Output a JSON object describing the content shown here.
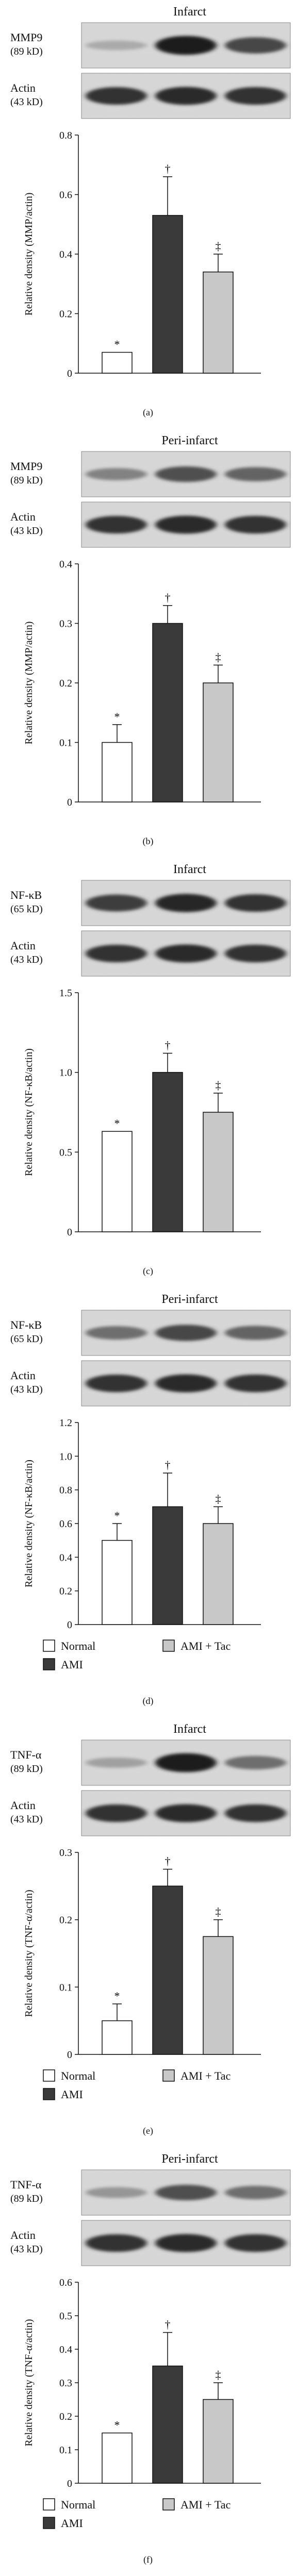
{
  "legend": {
    "normal": "Normal",
    "ami": "AMI",
    "ami_tac": "AMI + Tac"
  },
  "colors": {
    "normal": "#ffffff",
    "ami": "#3a3a3a",
    "ami_tac": "#c8c8c8",
    "axis": "#111111"
  },
  "chart_data": [
    {
      "type": "bar",
      "panel_label": "(a)",
      "title": "Infarct",
      "blot_top_label": [
        "MMP9",
        "(89 kD)"
      ],
      "blot_bottom_label": [
        "Actin",
        "(43 kD)"
      ],
      "ylabel": "Relative density (MMP/actin)",
      "ylim": [
        0,
        0.8
      ],
      "yticks": [
        "0",
        "0.2",
        "0.4",
        "0.6",
        "0.8"
      ],
      "categories": [
        "Normal",
        "AMI",
        "AMI + Tac"
      ],
      "values": [
        0.07,
        0.53,
        0.34
      ],
      "errors": [
        0,
        0.13,
        0.06
      ],
      "markers": [
        "*",
        "†",
        "‡"
      ],
      "band_intensity": [
        0.25,
        0.95,
        0.75
      ],
      "show_legend": false
    },
    {
      "type": "bar",
      "panel_label": "(b)",
      "title": "Peri-infarct",
      "blot_top_label": [
        "MMP9",
        "(89 kD)"
      ],
      "blot_bottom_label": [
        "Actin",
        "(43 kD)"
      ],
      "ylabel": "Relative density (MMP/actin)",
      "ylim": [
        0,
        0.4
      ],
      "yticks": [
        "0",
        "0.1",
        "0.2",
        "0.3",
        "0.4"
      ],
      "categories": [
        "Normal",
        "AMI",
        "AMI + Tac"
      ],
      "values": [
        0.1,
        0.3,
        0.2
      ],
      "errors": [
        0.03,
        0.03,
        0.03
      ],
      "markers": [
        "*",
        "†",
        "‡"
      ],
      "band_intensity": [
        0.45,
        0.7,
        0.6
      ],
      "show_legend": false
    },
    {
      "type": "bar",
      "panel_label": "(c)",
      "title": "Infarct",
      "blot_top_label": [
        "NF-κB",
        "(65 kD)"
      ],
      "blot_bottom_label": [
        "Actin",
        "(43 kD)"
      ],
      "ylabel": "Relative density (NF-κB/actin)",
      "ylim": [
        0,
        1.5
      ],
      "yticks": [
        "0",
        "0.5",
        "1.0",
        "1.5"
      ],
      "categories": [
        "Normal",
        "AMI",
        "AMI + Tac"
      ],
      "values": [
        0.63,
        1.0,
        0.75
      ],
      "errors": [
        0,
        0.12,
        0.12
      ],
      "markers": [
        "*",
        "†",
        "‡"
      ],
      "band_intensity": [
        0.8,
        0.9,
        0.85
      ],
      "show_legend": false
    },
    {
      "type": "bar",
      "panel_label": "(d)",
      "title": "Peri-infarct",
      "blot_top_label": [
        "NF-κB",
        "(65 kD)"
      ],
      "blot_bottom_label": [
        "Actin",
        "(43 kD)"
      ],
      "ylabel": "Relative density (NF-κB/actin)",
      "ylim": [
        0,
        1.2
      ],
      "yticks": [
        "0",
        "0.2",
        "0.4",
        "0.6",
        "0.8",
        "1.0",
        "1.2"
      ],
      "categories": [
        "Normal",
        "AMI",
        "AMI + Tac"
      ],
      "values": [
        0.5,
        0.7,
        0.6
      ],
      "errors": [
        0.1,
        0.2,
        0.1
      ],
      "markers": [
        "*",
        "†",
        "‡"
      ],
      "band_intensity": [
        0.55,
        0.75,
        0.6
      ],
      "show_legend": true
    },
    {
      "type": "bar",
      "panel_label": "(e)",
      "title": "Infarct",
      "blot_top_label": [
        "TNF-α",
        "(89 kD)"
      ],
      "blot_bottom_label": [
        "Actin",
        "(43 kD)"
      ],
      "ylabel": "Relative density (TNF-α/actin)",
      "ylim": [
        0,
        0.3
      ],
      "yticks": [
        "0",
        "0.1",
        "0.2",
        "0.3"
      ],
      "categories": [
        "Normal",
        "AMI",
        "AMI + Tac"
      ],
      "values": [
        0.05,
        0.25,
        0.175
      ],
      "errors": [
        0.025,
        0.025,
        0.025
      ],
      "markers": [
        "*",
        "†",
        "‡"
      ],
      "band_intensity": [
        0.3,
        0.95,
        0.55
      ],
      "show_legend": true
    },
    {
      "type": "bar",
      "panel_label": "(f)",
      "title": "Peri-infarct",
      "blot_top_label": [
        "TNF-α",
        "(89 kD)"
      ],
      "blot_bottom_label": [
        "Actin",
        "(43 kD)"
      ],
      "ylabel": "Relative density (TNF-α/actin)",
      "ylim": [
        0,
        0.6
      ],
      "yticks": [
        "0",
        "0.1",
        "0.2",
        "0.3",
        "0.4",
        "0.5",
        "0.6"
      ],
      "categories": [
        "Normal",
        "AMI",
        "AMI + Tac"
      ],
      "values": [
        0.15,
        0.35,
        0.25
      ],
      "errors": [
        0,
        0.1,
        0.05
      ],
      "markers": [
        "*",
        "†",
        "‡"
      ],
      "band_intensity": [
        0.35,
        0.7,
        0.55
      ],
      "show_legend": true
    }
  ]
}
